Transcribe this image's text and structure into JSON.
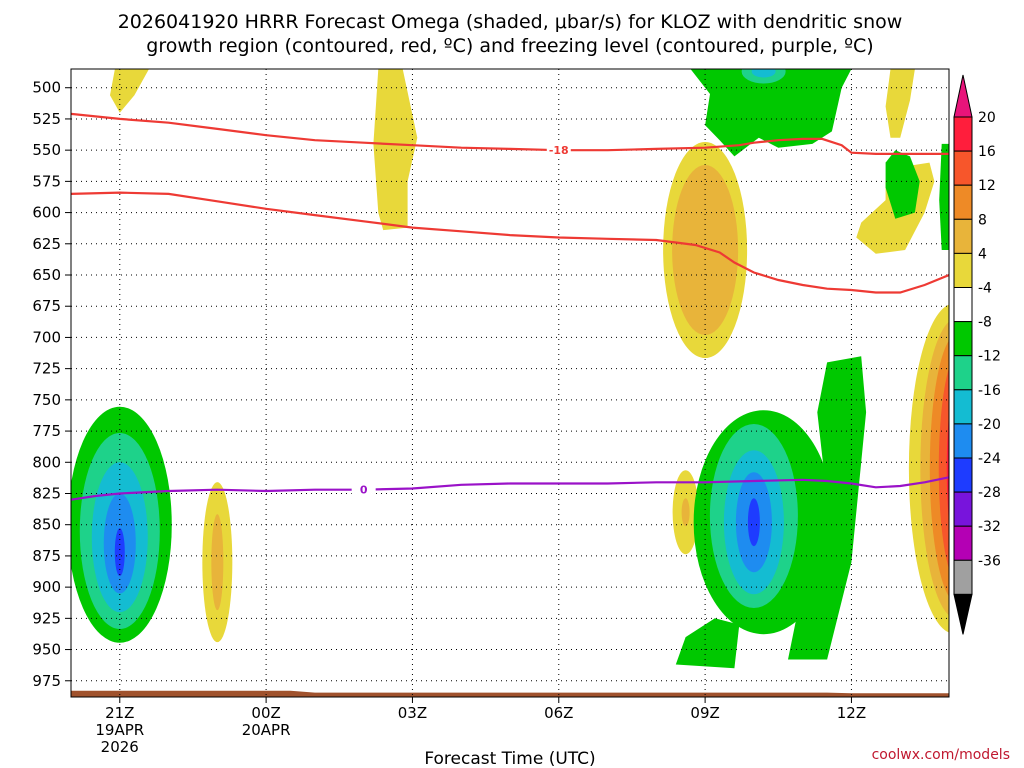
{
  "chart_data": {
    "type": "heatmap",
    "title_line1": "2026041920 HRRR Forecast Omega (shaded, μbar/s) for KLOZ with dendritic snow",
    "title_line2": "growth region (contoured, red, ºC) and freezing level (contoured, purple, ºC)",
    "xlabel": "Forecast Time (UTC)",
    "credit": "coolwx.com/models",
    "x_range_hours": [
      -1.0,
      17.0
    ],
    "y_range_mb": [
      485,
      988
    ],
    "y_ticks": [
      500,
      525,
      550,
      575,
      600,
      625,
      650,
      675,
      700,
      725,
      750,
      775,
      800,
      825,
      850,
      875,
      900,
      925,
      950,
      975
    ],
    "x_ticks": [
      {
        "hour": 0,
        "lines": [
          "21Z",
          "19APR",
          "2026"
        ]
      },
      {
        "hour": 3,
        "lines": [
          "00Z",
          "20APR"
        ]
      },
      {
        "hour": 6,
        "lines": [
          "03Z"
        ]
      },
      {
        "hour": 9,
        "lines": [
          "06Z"
        ]
      },
      {
        "hour": 12,
        "lines": [
          "09Z"
        ]
      },
      {
        "hour": 15,
        "lines": [
          "12Z"
        ]
      }
    ],
    "colorbar": {
      "levels": [
        "20",
        "16",
        "12",
        "8",
        "4",
        "-4",
        "-8",
        "-12",
        "-16",
        "-20",
        "-24",
        "-28",
        "-32",
        "-36"
      ],
      "colors": [
        "#ff1e3c",
        "#f7562b",
        "#ee8a26",
        "#e8b43a",
        "#e8d83a",
        "#ffffff",
        "#00c800",
        "#1ed28a",
        "#14bcd2",
        "#1e8cf0",
        "#1e3cff",
        "#7814dc",
        "#b400b4",
        "#a0a0a0"
      ],
      "top_color": "#e8147a",
      "bottom_color": "#000000"
    },
    "contours": [
      {
        "label": "-18",
        "color": "#ee3a34",
        "name": "dendritic snow growth region",
        "lines": [
          {
            "x": [
              -1.0,
              0,
              1,
              2,
              3,
              4,
              5,
              6,
              7,
              8,
              9,
              10,
              11,
              12,
              12.7,
              13,
              13.5,
              14,
              14.4,
              14.8,
              15,
              15.5,
              16,
              17.0
            ],
            "y": [
              521,
              525,
              528,
              533,
              538,
              542,
              544,
              546,
              548,
              549,
              550,
              550,
              549,
              548,
              546,
              544,
              542,
              541,
              541,
              546,
              552,
              553,
              553,
              553
            ]
          },
          {
            "x": [
              -1.0,
              0,
              1,
              2,
              3,
              4,
              5,
              6,
              7,
              8,
              9,
              10,
              11,
              11.8,
              12.3,
              12.6,
              13,
              13.5,
              14,
              14.5,
              15,
              15.5,
              16,
              16.5,
              17.0
            ],
            "y": [
              585,
              584,
              585,
              591,
              597,
              602,
              607,
              612,
              615,
              618,
              620,
              621,
              622,
              626,
              632,
              640,
              648,
              654,
              658,
              661,
              662,
              664,
              664,
              658,
              650
            ]
          }
        ]
      },
      {
        "label": "0",
        "color": "#9a12c8",
        "name": "freezing level",
        "lines": [
          {
            "x": [
              -1.0,
              -0.5,
              0,
              1,
              2,
              3,
              4,
              5,
              6,
              7,
              8,
              9,
              10,
              11,
              12,
              13,
              14,
              14.5,
              15,
              15.5,
              16,
              16.5,
              17.0
            ],
            "y": [
              830,
              827,
              825,
              823,
              822,
              823,
              822,
              822,
              821,
              818,
              817,
              817,
              817,
              816,
              816,
              815,
              814,
              815,
              817,
              820,
              819,
              816,
              812
            ]
          }
        ]
      }
    ],
    "omega_features": [
      {
        "sign": "negative",
        "x_center_hour": 0.0,
        "p_center_mb": 872,
        "peak": -24
      },
      {
        "sign": "negative",
        "x_center_hour": 13.0,
        "p_center_mb": 848,
        "peak": -24
      },
      {
        "sign": "negative",
        "x_center_hour": 15.0,
        "p_center_mb": 836,
        "peak": -12
      },
      {
        "sign": "negative",
        "x_center_hour": 12.8,
        "p_center_mb": 495,
        "peak": -12
      },
      {
        "sign": "positive",
        "x_center_hour": 12.0,
        "p_center_mb": 630,
        "peak": 12
      },
      {
        "sign": "positive",
        "x_center_hour": 2.0,
        "p_center_mb": 885,
        "peak": 8
      },
      {
        "sign": "positive",
        "x_center_hour": 17.0,
        "p_center_mb": 800,
        "peak": 20
      },
      {
        "sign": "positive",
        "x_center_hour": 5.5,
        "p_center_mb": 550,
        "peak": 4
      },
      {
        "sign": "positive",
        "x_center_hour": 15.5,
        "p_center_mb": 605,
        "peak": 4
      }
    ],
    "terrain": {
      "color": "#a0522d",
      "pressure_mb_start": 983,
      "pressure_mb_end": 985
    }
  }
}
